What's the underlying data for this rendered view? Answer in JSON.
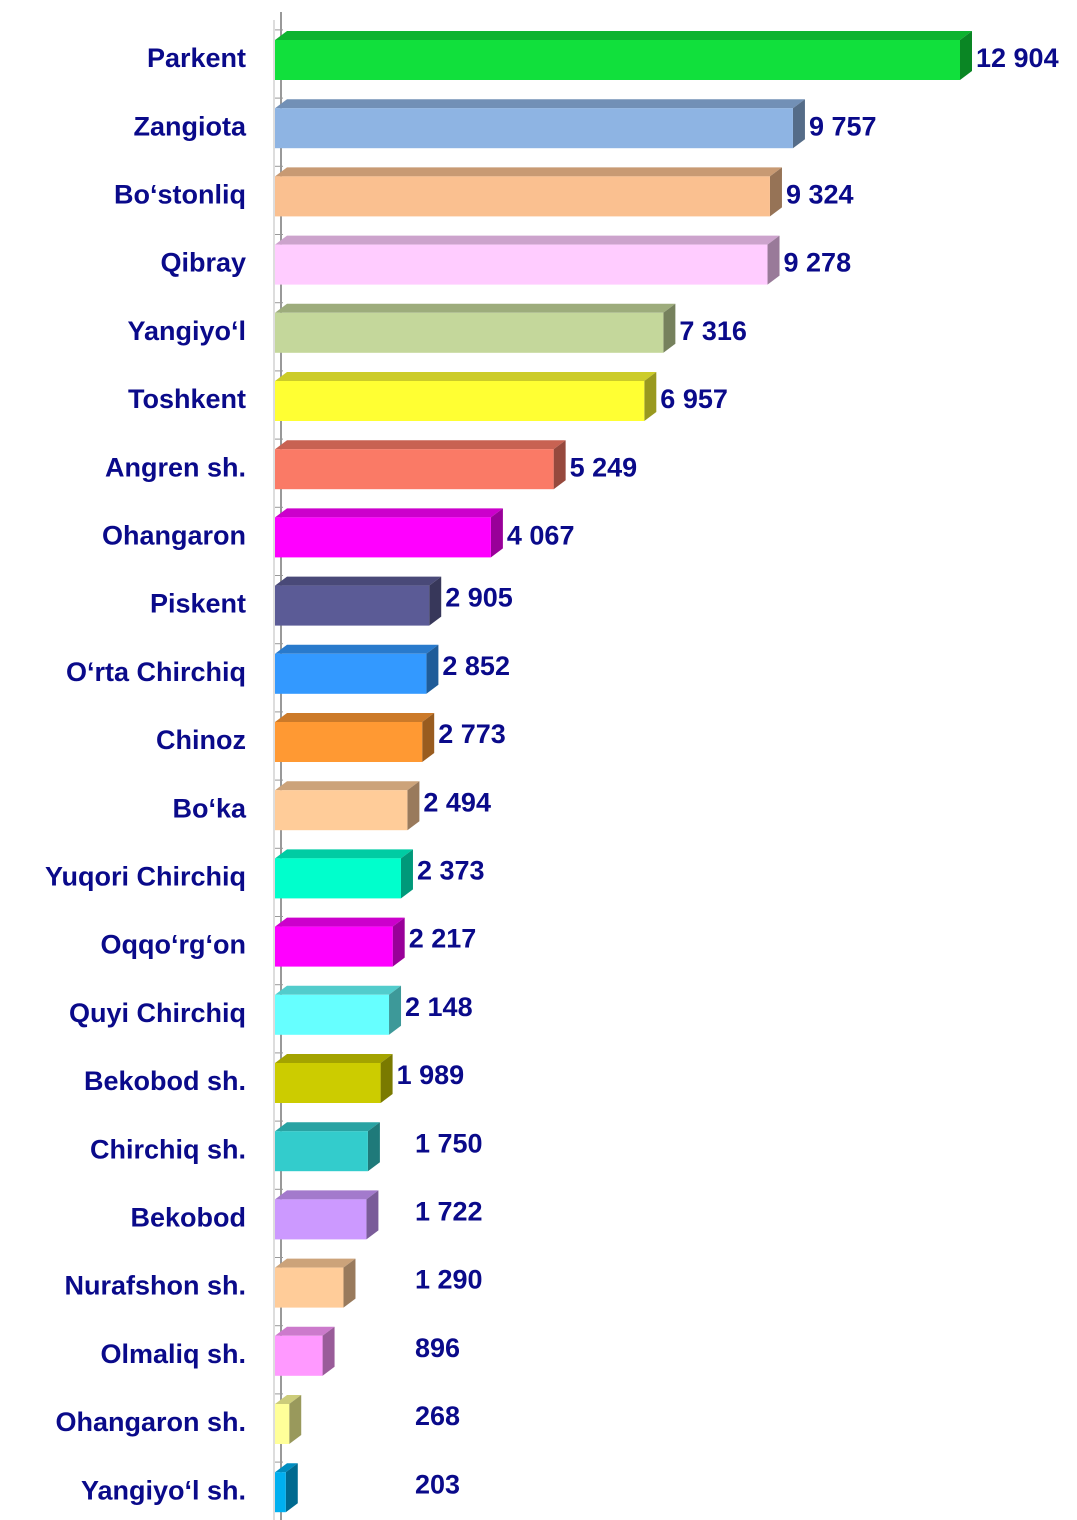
{
  "chart_data": {
    "type": "bar",
    "orientation": "horizontal",
    "three_d": true,
    "categories": [
      "Parkent",
      "Zangiota",
      "Bo‘stonliq",
      "Qibray",
      "Yangiyo‘l",
      "Toshkent",
      "Angren sh.",
      "Ohangaron",
      "Piskent",
      "O‘rta Chirchiq",
      "Chinoz",
      "Bo‘ka",
      "Yuqori Chirchiq",
      "Oqqo‘rg‘on",
      "Quyi Chirchiq",
      "Bekobod sh.",
      "Chirchiq sh.",
      "Bekobod",
      "Nurafshon sh.",
      "Olmaliq sh.",
      "Ohangaron sh.",
      "Yangiyo‘l sh."
    ],
    "values": [
      12904,
      9757,
      9324,
      9278,
      7316,
      6957,
      5249,
      4067,
      2905,
      2852,
      2773,
      2494,
      2373,
      2217,
      2148,
      1989,
      1750,
      1722,
      1290,
      896,
      268,
      203
    ],
    "value_labels": [
      "12 904",
      "9 757",
      "9 324",
      "9 278",
      "7 316",
      "6 957",
      "5 249",
      "4 067",
      "2 905",
      "2 852",
      "2 773",
      "2 494",
      "2 373",
      "2 217",
      "2 148",
      "1 989",
      "1 750",
      "1 722",
      "1 290",
      "896",
      "268",
      "203"
    ],
    "colors": [
      "#11e03c",
      "#8eb4e3",
      "#fac090",
      "#ffccff",
      "#c4d79b",
      "#ffff33",
      "#fa7a66",
      "#ff00ff",
      "#5b5b96",
      "#3399ff",
      "#ff9933",
      "#ffcc99",
      "#00ffcc",
      "#ff00ff",
      "#66ffff",
      "#cccc00",
      "#33cccc",
      "#cc99ff",
      "#ffcc99",
      "#ff99ff",
      "#ffff99",
      "#00b0f0"
    ]
  }
}
